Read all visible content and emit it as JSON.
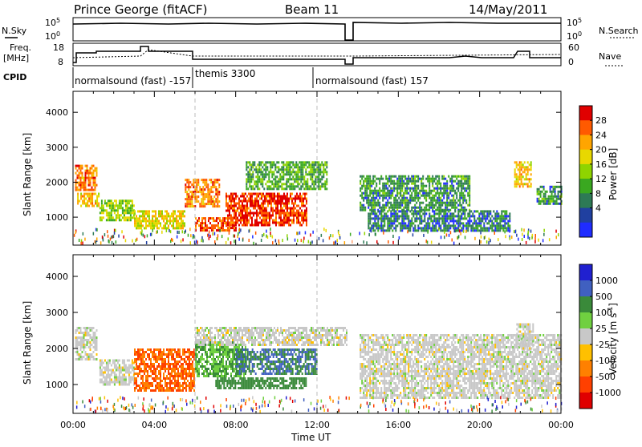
{
  "header": {
    "station": "Prince George (fitACF)",
    "beam": "Beam 11",
    "date": "14/May/2011"
  },
  "top_labels": {
    "nsky": "N.Sky",
    "freq": "Freq.",
    "freq_unit": "[MHz]",
    "cpid": "CPID",
    "nsearch": "N.Search",
    "nave": "Nave",
    "sky_ticks": [
      "10^5",
      "10^0"
    ],
    "freq_ticks": [
      "18",
      "8"
    ],
    "search_ticks": [
      "10^5",
      "10^0"
    ],
    "nave_ticks": [
      "60",
      "0"
    ]
  },
  "cpid_segments": [
    {
      "label": "normalsound (fast) -157",
      "start_hour": 0.0
    },
    {
      "label": "themis 3300",
      "start_hour": 6.0
    },
    {
      "label": "normalsound (fast) 157",
      "start_hour": 12.0
    }
  ],
  "chart_data": [
    {
      "type": "heatmap",
      "parameter": "Power",
      "ylabel": "Slant Range [km]",
      "xlabel": "Time UT",
      "xlim_hours": [
        0,
        24
      ],
      "ylim_km": [
        200,
        4600
      ],
      "y_ticks": [
        1000,
        2000,
        3000,
        4000
      ],
      "x_tick_labels": [
        "00:00",
        "04:00",
        "08:00",
        "12:00",
        "16:00",
        "20:00",
        "00:00"
      ],
      "colorbar_label": "Power [dB]",
      "colorbar_ticks": [
        "28",
        "24",
        "20",
        "16",
        "12",
        "8",
        "4"
      ],
      "colorbar_colors": [
        "#e00000",
        "#ff5a00",
        "#ffa500",
        "#e8d800",
        "#8fd400",
        "#3aa820",
        "#2d7a55",
        "#2040a0",
        "#1f2cff"
      ],
      "data_gap_hours": [
        13.75,
        14.05
      ],
      "echo_bands": [
        {
          "start_hour": 0.1,
          "end_hour": 1.2,
          "min_km": 1800,
          "max_km": 2500,
          "level_db": 24
        },
        {
          "start_hour": 0.2,
          "end_hour": 1.3,
          "min_km": 1300,
          "max_km": 1700,
          "level_db": 20
        },
        {
          "start_hour": 1.3,
          "end_hour": 3.0,
          "min_km": 900,
          "max_km": 1500,
          "level_db": 14
        },
        {
          "start_hour": 3.0,
          "end_hour": 5.5,
          "min_km": 700,
          "max_km": 1200,
          "level_db": 18
        },
        {
          "start_hour": 5.5,
          "end_hour": 7.2,
          "min_km": 1300,
          "max_km": 2100,
          "level_db": 24
        },
        {
          "start_hour": 6.0,
          "end_hour": 8.0,
          "min_km": 600,
          "max_km": 1000,
          "level_db": 26
        },
        {
          "start_hour": 7.5,
          "end_hour": 11.5,
          "min_km": 800,
          "max_km": 1700,
          "level_db": 28
        },
        {
          "start_hour": 8.5,
          "end_hour": 12.5,
          "min_km": 1800,
          "max_km": 2600,
          "level_db": 10
        },
        {
          "start_hour": 14.1,
          "end_hour": 19.5,
          "min_km": 1200,
          "max_km": 2200,
          "level_db": 8
        },
        {
          "start_hour": 14.5,
          "end_hour": 21.5,
          "min_km": 600,
          "max_km": 1200,
          "level_db": 6
        },
        {
          "start_hour": 21.7,
          "end_hour": 22.5,
          "min_km": 1900,
          "max_km": 2600,
          "level_db": 20
        },
        {
          "start_hour": 22.8,
          "end_hour": 24.0,
          "min_km": 1400,
          "max_km": 1900,
          "level_db": 8
        }
      ]
    },
    {
      "type": "heatmap",
      "parameter": "Velocity",
      "ylabel": "Slant Range [km]",
      "xlabel": "Time UT",
      "xlim_hours": [
        0,
        24
      ],
      "ylim_km": [
        200,
        4600
      ],
      "y_ticks": [
        1000,
        2000,
        3000,
        4000
      ],
      "x_tick_labels": [
        "00:00",
        "04:00",
        "08:00",
        "12:00",
        "16:00",
        "20:00",
        "00:00"
      ],
      "colorbar_label": "Velocity [m s^-1]",
      "colorbar_ticks": [
        "1000",
        "500",
        "100",
        "25",
        "-25",
        "-100",
        "-500",
        "-1000"
      ],
      "colorbar_colors": [
        "#2020d0",
        "#4060c0",
        "#3a8a3a",
        "#70d040",
        "#c8c8c8",
        "#ffc000",
        "#ff8000",
        "#ff4000",
        "#e00000"
      ],
      "data_gap_hours": [
        13.75,
        14.05
      ],
      "echo_bands": [
        {
          "start_hour": 0.1,
          "end_hour": 1.2,
          "min_km": 1700,
          "max_km": 2600,
          "velocity": 0
        },
        {
          "start_hour": 1.3,
          "end_hour": 3.0,
          "min_km": 1000,
          "max_km": 1700,
          "velocity": 0
        },
        {
          "start_hour": 3.0,
          "end_hour": 6.0,
          "min_km": 800,
          "max_km": 2000,
          "velocity": -500
        },
        {
          "start_hour": 6.0,
          "end_hour": 8.5,
          "min_km": 1200,
          "max_km": 2200,
          "velocity": 100
        },
        {
          "start_hour": 8.0,
          "end_hour": 12.0,
          "min_km": 1300,
          "max_km": 2000,
          "velocity": 500
        },
        {
          "start_hour": 7.0,
          "end_hour": 11.5,
          "min_km": 900,
          "max_km": 1200,
          "velocity": 150
        },
        {
          "start_hour": 6.0,
          "end_hour": 13.5,
          "min_km": 2100,
          "max_km": 2600,
          "velocity": 0
        },
        {
          "start_hour": 14.1,
          "end_hour": 24.0,
          "min_km": 600,
          "max_km": 2400,
          "velocity": 0
        },
        {
          "start_hour": 21.8,
          "end_hour": 22.6,
          "min_km": 2000,
          "max_km": 2700,
          "velocity": 0
        }
      ]
    }
  ]
}
